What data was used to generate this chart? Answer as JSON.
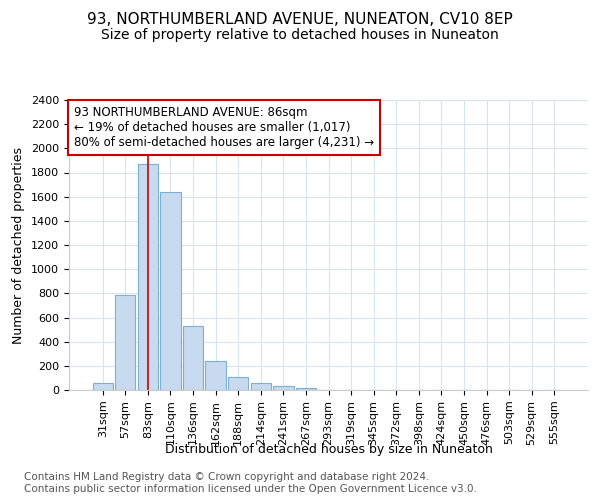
{
  "title": "93, NORTHUMBERLAND AVENUE, NUNEATON, CV10 8EP",
  "subtitle": "Size of property relative to detached houses in Nuneaton",
  "xlabel": "Distribution of detached houses by size in Nuneaton",
  "ylabel": "Number of detached properties",
  "footer_line1": "Contains HM Land Registry data © Crown copyright and database right 2024.",
  "footer_line2": "Contains public sector information licensed under the Open Government Licence v3.0.",
  "categories": [
    "31sqm",
    "57sqm",
    "83sqm",
    "110sqm",
    "136sqm",
    "162sqm",
    "188sqm",
    "214sqm",
    "241sqm",
    "267sqm",
    "293sqm",
    "319sqm",
    "345sqm",
    "372sqm",
    "398sqm",
    "424sqm",
    "450sqm",
    "476sqm",
    "503sqm",
    "529sqm",
    "555sqm"
  ],
  "values": [
    55,
    790,
    1870,
    1640,
    530,
    240,
    110,
    60,
    35,
    20,
    0,
    0,
    0,
    0,
    0,
    0,
    0,
    0,
    0,
    0,
    0
  ],
  "bar_color": "#c8daf0",
  "bar_edge_color": "#7bafd4",
  "highlight_bar_index": 2,
  "highlight_line_color": "#cc0000",
  "annotation_text_line1": "93 NORTHUMBERLAND AVENUE: 86sqm",
  "annotation_text_line2": "← 19% of detached houses are smaller (1,017)",
  "annotation_text_line3": "80% of semi-detached houses are larger (4,231) →",
  "annotation_box_color": "#cc0000",
  "ylim": [
    0,
    2400
  ],
  "yticks": [
    0,
    200,
    400,
    600,
    800,
    1000,
    1200,
    1400,
    1600,
    1800,
    2000,
    2200,
    2400
  ],
  "plot_bg_color": "#ffffff",
  "fig_bg_color": "#ffffff",
  "grid_color": "#d8e4f0",
  "title_fontsize": 11,
  "subtitle_fontsize": 10,
  "axis_label_fontsize": 9,
  "tick_fontsize": 8,
  "annotation_fontsize": 8.5,
  "footer_fontsize": 7.5
}
